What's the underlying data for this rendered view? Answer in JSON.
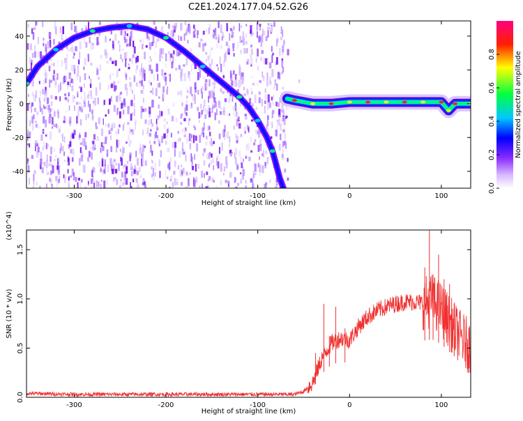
{
  "title": "C2E1.2024.177.04.52.G26",
  "chart_data": [
    {
      "type": "heatmap",
      "xlabel": "Height of straight line (km)",
      "ylabel": "Frequency (Hz)",
      "xlim": [
        -352,
        132
      ],
      "ylim": [
        -50,
        49
      ],
      "xticks": [
        -300,
        -200,
        -100,
        0,
        100
      ],
      "yticks": [
        -40,
        -20,
        0,
        20,
        40
      ],
      "colorbar": {
        "label": "Normalized spectral amplitude",
        "range": [
          0.0,
          1.0
        ],
        "ticks": [
          0.0,
          0.2,
          0.4,
          0.6,
          0.8
        ],
        "colors": [
          "#ffffff",
          "#c8a0ff",
          "#7a00ff",
          "#0000ff",
          "#00d8ff",
          "#00ff40",
          "#ffff00",
          "#ff0000",
          "#ff0080"
        ]
      },
      "series": [
        {
          "points": [
            [
              -352,
              12
            ],
            [
              -340,
              22
            ],
            [
              -320,
              32
            ],
            [
              -300,
              39
            ],
            [
              -280,
              43
            ],
            [
              -260,
              45
            ],
            [
              -240,
              46
            ],
            [
              -220,
              44
            ],
            [
              -200,
              39
            ],
            [
              -180,
              31
            ],
            [
              -160,
              22
            ],
            [
              -140,
              13
            ],
            [
              -120,
              4
            ],
            [
              -110,
              -2
            ],
            [
              -100,
              -10
            ],
            [
              -90,
              -20
            ],
            [
              -84,
              -28
            ],
            [
              -80,
              -36
            ],
            [
              -76,
              -44
            ],
            [
              -72,
              -50
            ]
          ]
        },
        {
          "points": [
            [
              -68,
              3
            ],
            [
              -60,
              2
            ],
            [
              -40,
              0
            ],
            [
              -20,
              0
            ],
            [
              0,
              1
            ],
            [
              20,
              1
            ],
            [
              40,
              1
            ],
            [
              60,
              1
            ],
            [
              80,
              1
            ],
            [
              100,
              1
            ],
            [
              108,
              -4
            ],
            [
              115,
              0
            ],
            [
              132,
              0
            ]
          ]
        }
      ]
    },
    {
      "type": "line",
      "xlabel": "Height of straight line (km)",
      "ylabel": "SNR (10 * v/v)",
      "yscale_note": "(x10^4)",
      "xlim": [
        -352,
        132
      ],
      "ylim": [
        0.0,
        1.7
      ],
      "xticks": [
        -300,
        -200,
        -100,
        0,
        100
      ],
      "yticks": [
        "0.0",
        "0.5",
        "1.0",
        "1.5"
      ],
      "color": "#f03030",
      "series": [
        {
          "points": [
            [
              -352,
              0.04
            ],
            [
              -300,
              0.03
            ],
            [
              -250,
              0.03
            ],
            [
              -200,
              0.03
            ],
            [
              -150,
              0.03
            ],
            [
              -100,
              0.03
            ],
            [
              -60,
              0.03
            ],
            [
              -50,
              0.06
            ],
            [
              -40,
              0.15
            ],
            [
              -30,
              0.4
            ],
            [
              -20,
              0.55
            ],
            [
              -10,
              0.6
            ],
            [
              0,
              0.58
            ],
            [
              10,
              0.72
            ],
            [
              20,
              0.82
            ],
            [
              30,
              0.88
            ],
            [
              40,
              0.92
            ],
            [
              50,
              0.95
            ],
            [
              60,
              0.97
            ],
            [
              70,
              0.97
            ],
            [
              80,
              0.96
            ],
            [
              90,
              0.98
            ],
            [
              100,
              0.9
            ],
            [
              110,
              0.75
            ],
            [
              120,
              0.62
            ],
            [
              132,
              0.5
            ]
          ],
          "spikes": [
            [
              -37,
              0.45
            ],
            [
              -28,
              0.95
            ],
            [
              -22,
              0.62
            ],
            [
              -15,
              0.92
            ],
            [
              -5,
              0.7
            ],
            [
              82,
              1.32
            ],
            [
              87,
              1.7
            ],
            [
              91,
              1.25
            ],
            [
              97,
              1.45
            ],
            [
              103,
              1.2
            ],
            [
              109,
              1.15
            ],
            [
              114,
              0.95
            ]
          ]
        }
      ]
    }
  ]
}
